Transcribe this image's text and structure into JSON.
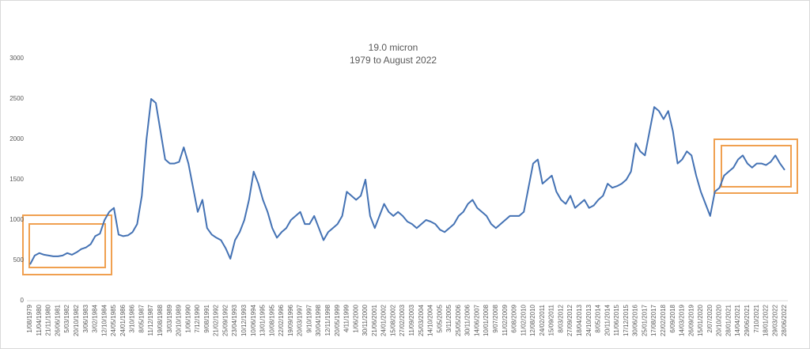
{
  "chart_data": {
    "type": "line",
    "title": "19.0 micron",
    "subtitle": "1979 to August 2022",
    "categories": [
      "1/08/1979",
      null,
      "11/04/1980",
      null,
      "21/11/1980",
      null,
      "26/06/1981",
      null,
      "5/03/1982",
      null,
      "20/10/1982",
      null,
      "3/06/1983",
      null,
      "3/02/1984",
      null,
      "12/10/1984",
      null,
      "24/05/1985",
      null,
      "24/01/1986",
      null,
      "3/10/1986",
      null,
      "8/05/1987",
      null,
      "11/12/1987",
      null,
      "19/08/1988",
      null,
      "3/03/1989",
      null,
      "20/10/1989",
      null,
      "1/06/1990",
      null,
      "7/12/1990",
      null,
      "9/08/1991",
      null,
      "21/02/1992",
      null,
      "25/09/1992",
      null,
      "23/04/1993",
      null,
      "10/12/1993",
      null,
      "10/06/1994",
      null,
      "13/01/1995",
      null,
      "10/08/1995",
      null,
      "22/02/1996",
      null,
      "19/09/1996",
      null,
      "20/03/1997",
      null,
      "9/10/1997",
      null,
      "30/04/1998",
      null,
      "12/11/1998",
      null,
      "20/05/1999",
      null,
      "4/11/1999",
      null,
      "1/06/2000",
      null,
      "30/11/2000",
      null,
      "21/06/2001",
      null,
      "24/01/2002",
      null,
      "15/08/2002",
      null,
      "27/02/2003",
      null,
      "11/09/2003",
      null,
      "25/03/2004",
      null,
      "14/10/2004",
      null,
      "5/05/2005",
      null,
      "3/11/2005",
      null,
      "25/05/2006",
      null,
      "30/11/2006",
      null,
      "14/06/2007",
      null,
      "10/01/2008",
      null,
      "9/07/2008",
      null,
      "11/02/2009",
      null,
      "6/08/2009",
      null,
      "11/02/2010",
      null,
      "12/08/2010",
      null,
      "24/02/2011",
      null,
      "15/09/2011",
      null,
      "8/03/2012",
      null,
      "27/09/2012",
      null,
      "18/04/2013",
      null,
      "24/10/2013",
      null,
      "8/05/2014",
      null,
      "20/11/2014",
      null,
      "11/06/2015",
      null,
      "17/12/2015",
      null,
      "30/06/2016",
      null,
      "25/01/2017",
      null,
      "17/08/2017",
      null,
      "22/02/2018",
      null,
      "6/09/2018",
      null,
      "14/03/2019",
      null,
      "26/09/2019",
      null,
      "15/01/2020",
      null,
      "2/07/2020",
      null,
      "20/10/2020",
      null,
      "28/01/2021",
      null,
      "14/04/2021",
      null,
      "29/06/2021",
      null,
      "7/10/2021",
      null,
      "18/01/2022",
      null,
      "29/03/2022",
      null,
      "28/06/2022"
    ],
    "series": [
      {
        "name": "19.0 micron",
        "color": "#4472b4",
        "values": [
          450,
          560,
          590,
          570,
          560,
          550,
          550,
          560,
          590,
          570,
          600,
          640,
          660,
          700,
          800,
          830,
          1000,
          1100,
          1150,
          820,
          800,
          810,
          850,
          950,
          1300,
          2000,
          2500,
          2450,
          2100,
          1750,
          1700,
          1700,
          1720,
          1900,
          1700,
          1400,
          1100,
          1250,
          900,
          820,
          780,
          750,
          650,
          520,
          750,
          850,
          1000,
          1250,
          1600,
          1450,
          1250,
          1100,
          900,
          780,
          850,
          900,
          1000,
          1050,
          1100,
          950,
          950,
          1050,
          900,
          750,
          850,
          900,
          950,
          1050,
          1350,
          1300,
          1250,
          1300,
          1500,
          1050,
          900,
          1050,
          1200,
          1100,
          1050,
          1100,
          1050,
          980,
          950,
          900,
          950,
          1000,
          980,
          950,
          880,
          850,
          900,
          950,
          1050,
          1100,
          1200,
          1250,
          1150,
          1100,
          1050,
          950,
          900,
          950,
          1000,
          1050,
          1050,
          1050,
          1100,
          1400,
          1700,
          1750,
          1450,
          1500,
          1550,
          1350,
          1250,
          1200,
          1300,
          1150,
          1200,
          1250,
          1150,
          1180,
          1250,
          1300,
          1450,
          1400,
          1420,
          1450,
          1500,
          1600,
          1950,
          1850,
          1800,
          2100,
          2400,
          2350,
          2250,
          2350,
          2100,
          1700,
          1750,
          1850,
          1800,
          1550,
          1350,
          1200,
          1050,
          1350,
          1400,
          1550,
          1600,
          1650,
          1750,
          1800,
          1700,
          1650,
          1700,
          1700,
          1680,
          1720,
          1800,
          1700,
          1620
        ]
      }
    ],
    "ylim": [
      0,
      3000
    ],
    "yticks": [
      0,
      500,
      1000,
      1500,
      2000,
      2500,
      3000
    ],
    "grid": false
  }
}
